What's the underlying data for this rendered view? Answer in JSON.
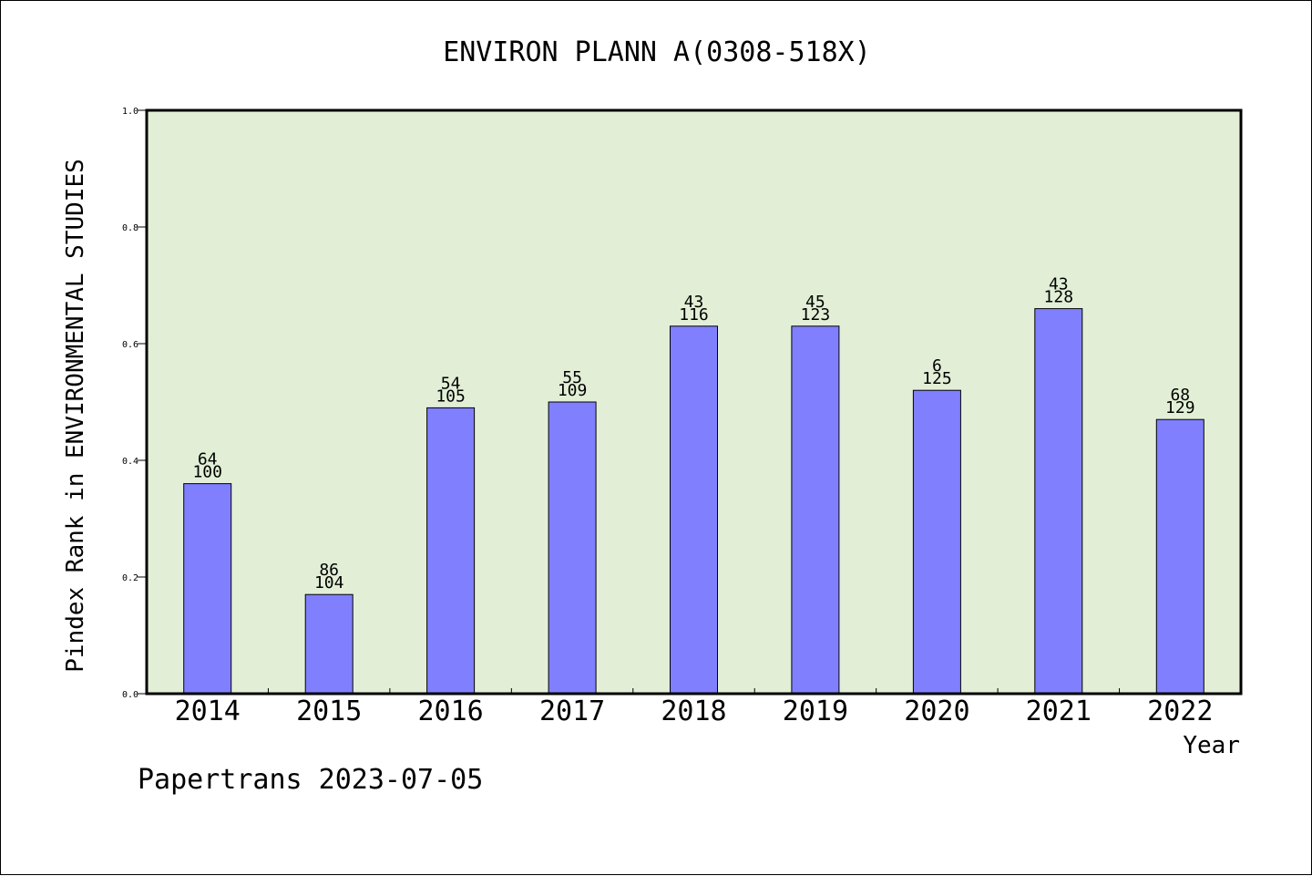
{
  "colors": {
    "plot_background": "#e2efd6",
    "bar_fill": "#8080ff",
    "bar_stroke": "#000000",
    "frame": "#000000"
  },
  "chart_data": {
    "type": "bar",
    "title": "ENVIRON PLANN A(0308-518X)",
    "xlabel": "Year",
    "ylabel": "Pindex Rank in ENVIRONMENTAL STUDIES",
    "ylim": [
      0.0,
      1.0
    ],
    "yticks": [
      "0.0",
      "0.2",
      "0.4",
      "0.6",
      "0.8",
      "1.0"
    ],
    "grid": false,
    "legend": "none",
    "categories": [
      "2014",
      "2015",
      "2016",
      "2017",
      "2018",
      "2019",
      "2020",
      "2021",
      "2022"
    ],
    "values": [
      0.36,
      0.17,
      0.49,
      0.5,
      0.63,
      0.63,
      0.52,
      0.66,
      0.47
    ],
    "labels_top": [
      "64",
      "86",
      "54",
      "55",
      "43",
      "45",
      "6",
      "43",
      "68"
    ],
    "labels_bottom": [
      "100",
      "104",
      "105",
      "109",
      "116",
      "123",
      "125",
      "128",
      "129"
    ]
  },
  "footer": {
    "text": "Papertrans 2023-07-05"
  }
}
